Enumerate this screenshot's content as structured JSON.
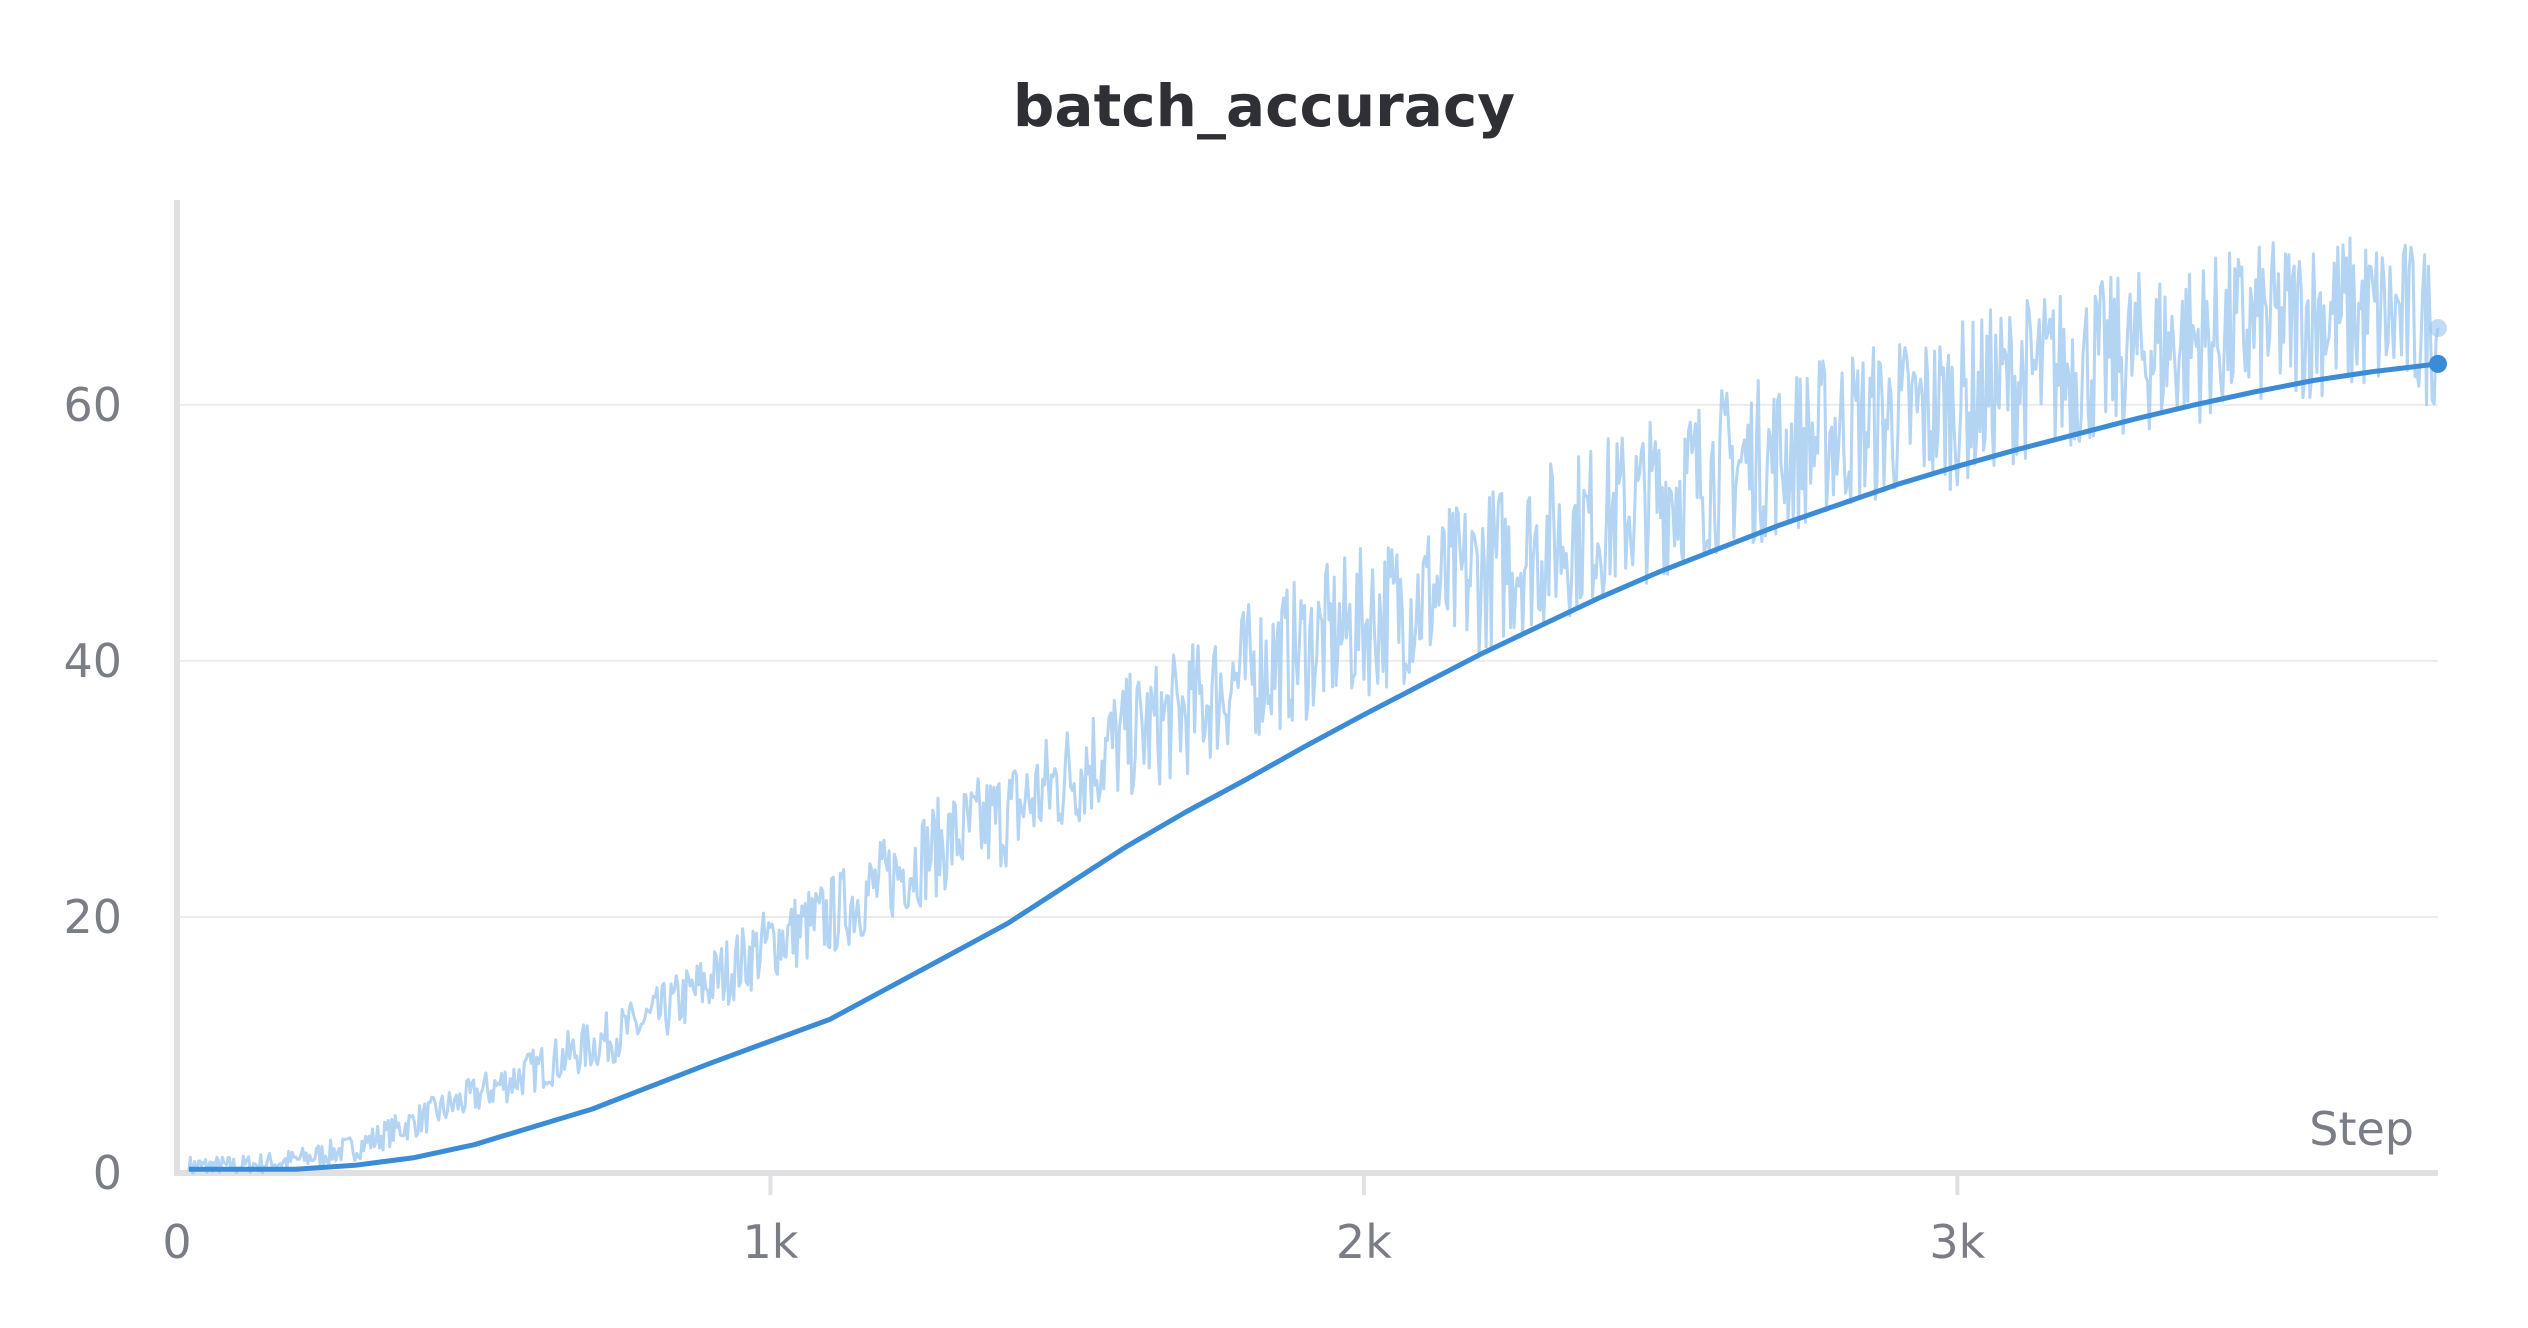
{
  "chart_data": {
    "type": "line",
    "title": "batch_accuracy",
    "xlabel": "Step",
    "ylabel": "",
    "xlim": [
      0,
      3810
    ],
    "ylim": [
      0,
      76
    ],
    "x_ticks": [
      {
        "value": 0,
        "label": "0"
      },
      {
        "value": 1000,
        "label": "1k"
      },
      {
        "value": 2000,
        "label": "2k"
      },
      {
        "value": 3000,
        "label": "3k"
      }
    ],
    "y_ticks": [
      {
        "value": 0,
        "label": "0"
      },
      {
        "value": 20,
        "label": "20"
      },
      {
        "value": 40,
        "label": "40"
      },
      {
        "value": 60,
        "label": "60"
      }
    ],
    "grid": true,
    "legend": "none",
    "series": [
      {
        "role": "raw",
        "color": "#9ac5ee",
        "x": [
          20,
          100,
          200,
          300,
          400,
          500,
          600,
          700,
          800,
          900,
          1000,
          1100,
          1200,
          1300,
          1400,
          1500,
          1600,
          1700,
          1800,
          1900,
          2000,
          2100,
          2200,
          2300,
          2400,
          2500,
          2600,
          2700,
          2800,
          2900,
          3000,
          3100,
          3200,
          3300,
          3400,
          3500,
          3600,
          3700,
          3810
        ],
        "y": [
          0.5,
          0.5,
          1,
          2,
          4,
          6,
          8,
          10,
          12,
          15,
          18,
          20,
          23,
          26,
          28,
          31,
          34,
          36,
          39,
          41,
          43,
          45,
          47,
          49,
          51,
          53,
          55,
          56,
          58,
          59,
          60,
          62,
          63,
          64,
          65,
          66,
          67,
          67,
          66
        ]
      },
      {
        "role": "smoothed",
        "color": "#3b8bd6",
        "x": [
          20,
          100,
          200,
          300,
          400,
          500,
          600,
          700,
          800,
          900,
          1000,
          1100,
          1200,
          1300,
          1400,
          1500,
          1600,
          1700,
          1800,
          1900,
          2000,
          2100,
          2200,
          2300,
          2400,
          2500,
          2600,
          2700,
          2800,
          2900,
          3000,
          3100,
          3200,
          3300,
          3400,
          3500,
          3600,
          3700,
          3810
        ],
        "y": [
          0.3,
          0.3,
          0.3,
          0.6,
          1.2,
          2.2,
          3.6,
          5.0,
          6.8,
          8.6,
          10.3,
          12.0,
          14.5,
          17.0,
          19.5,
          22.5,
          25.5,
          28.2,
          30.7,
          33.3,
          35.8,
          38.2,
          40.6,
          42.8,
          45.0,
          47.0,
          48.8,
          50.6,
          52.2,
          53.8,
          55.2,
          56.5,
          57.7,
          58.9,
          60.0,
          61.0,
          61.9,
          62.6,
          63.2
        ]
      }
    ]
  }
}
